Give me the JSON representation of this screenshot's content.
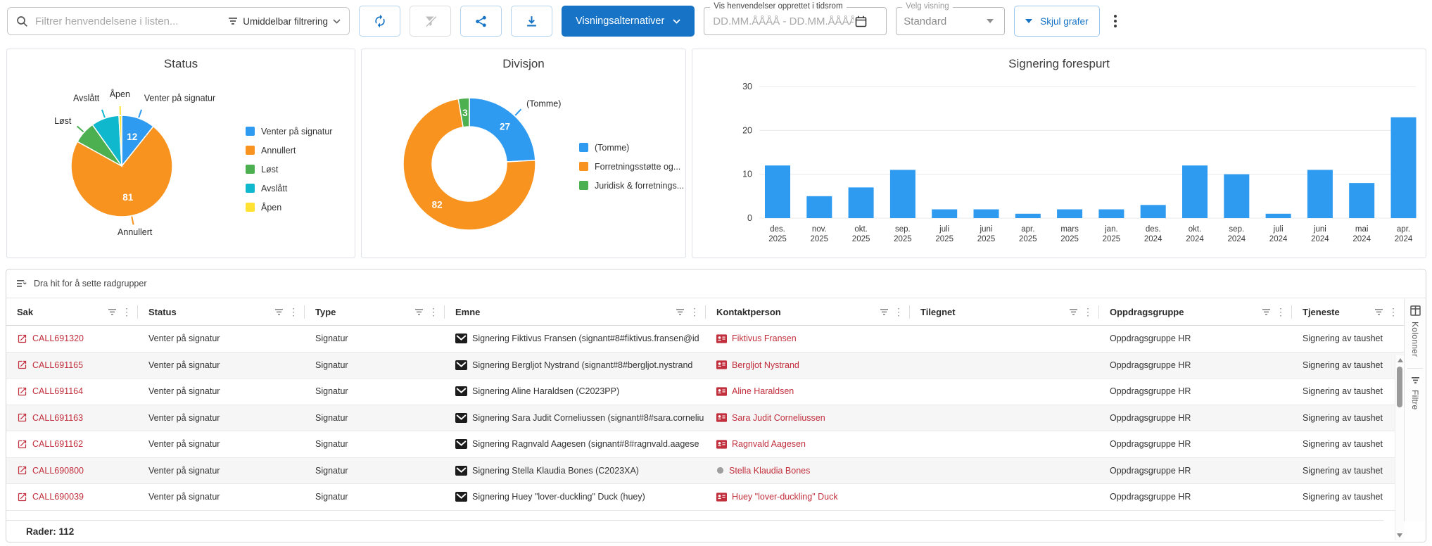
{
  "toolbar": {
    "search_placeholder": "Filtrer henvendelsene i listen...",
    "filter_mode_label": "Umiddelbar filtrering",
    "refresh_icon": "refresh-icon",
    "clear_filter_icon": "filter-off-icon",
    "share_icon": "share-icon",
    "download_icon": "download-icon",
    "view_options_label": "Visningsalternativer",
    "date_range_label": "Vis henvendelser opprettet i tidsrom",
    "date_range_placeholder": "DD.MM.ÅÅÅÅ - DD.MM.ÅÅÅÅ",
    "view_select_label": "Velg visning",
    "view_select_value": "Standard",
    "hide_charts_label": "Skjul grafer"
  },
  "colors": {
    "accent_blue": "#1673c6",
    "chart_blue": "#2e9bf0",
    "chart_orange": "#f7931e",
    "chart_green": "#4caf50",
    "chart_cyan": "#10b8ce",
    "chart_yellow": "#ffe234",
    "link_red": "#c12e3c"
  },
  "chart_data": [
    {
      "type": "pie",
      "title": "Status",
      "slices": [
        {
          "label": "Venter på signatur",
          "value": 12,
          "color": "#2e9bf0",
          "show_value": true,
          "show_label": true
        },
        {
          "label": "Annullert",
          "value": 81,
          "color": "#f7931e",
          "show_value": true,
          "show_label": true
        },
        {
          "label": "Løst",
          "value": 8,
          "color": "#4caf50",
          "show_value": false,
          "show_label": true
        },
        {
          "label": "Avslått",
          "value": 10,
          "color": "#10b8ce",
          "show_value": false,
          "show_label": true
        },
        {
          "label": "Åpen",
          "value": 1,
          "color": "#ffe234",
          "show_value": false,
          "show_label": true
        }
      ],
      "legend": [
        "Venter på signatur",
        "Annullert",
        "Løst",
        "Avslått",
        "Åpen"
      ],
      "legend_position": "right"
    },
    {
      "type": "donut",
      "title": "Divisjon",
      "slices": [
        {
          "label": "(Tomme)",
          "value": 27,
          "color": "#2e9bf0",
          "show_value": true,
          "show_label": true
        },
        {
          "label": "Forretningsstøtte og...",
          "value": 82,
          "color": "#f7931e",
          "show_value": true,
          "show_label": false
        },
        {
          "label": "Juridisk & forretnings...",
          "value": 3,
          "color": "#4caf50",
          "show_value": true,
          "show_label": false
        }
      ],
      "legend": [
        "(Tomme)",
        "Forretningsstøtte og...",
        "Juridisk & forretnings..."
      ],
      "legend_position": "right"
    },
    {
      "type": "bar",
      "title": "Signering forespurt",
      "categories": [
        "des. 2025",
        "nov. 2025",
        "okt. 2025",
        "sep. 2025",
        "juli 2025",
        "juni 2025",
        "apr. 2025",
        "mars 2025",
        "jan. 2025",
        "des. 2024",
        "okt. 2024",
        "sep. 2024",
        "juli 2024",
        "juni 2024",
        "mai 2024",
        "apr. 2024"
      ],
      "values": [
        12,
        5,
        7,
        11,
        2,
        2,
        1,
        2,
        2,
        3,
        12,
        10,
        1,
        11,
        8,
        23
      ],
      "bar_color": "#2e9bf0",
      "yticks": [
        0,
        10,
        20,
        30
      ],
      "ylim": [
        0,
        30
      ],
      "grid": true,
      "xlabel": "",
      "ylabel": ""
    }
  ],
  "table": {
    "group_hint": "Dra hit for å sette radgrupper",
    "columns": [
      "Sak",
      "Status",
      "Type",
      "Emne",
      "Kontaktperson",
      "Tilegnet",
      "Oppdragsgruppe",
      "Tjeneste"
    ],
    "rows": [
      {
        "sak": "CALL691320",
        "status": "Venter på signatur",
        "type": "Signatur",
        "emne": "Signering Fiktivus Fransen (signant#8#fiktivus.fransen@id",
        "kontaktperson": "Fiktivus Fransen",
        "kontakt_icon": "contact-card",
        "tilegnet": "",
        "oppdragsgruppe": "Oppdragsgruppe HR",
        "tjeneste": "Signering av taushet"
      },
      {
        "sak": "CALL691165",
        "status": "Venter på signatur",
        "type": "Signatur",
        "emne": "Signering Bergljot Nystrand (signant#8#bergljot.nystrand",
        "kontaktperson": "Bergljot Nystrand",
        "kontakt_icon": "contact-card",
        "tilegnet": "",
        "oppdragsgruppe": "Oppdragsgruppe HR",
        "tjeneste": "Signering av taushet"
      },
      {
        "sak": "CALL691164",
        "status": "Venter på signatur",
        "type": "Signatur",
        "emne": "Signering Aline Haraldsen (C2023PP)",
        "kontaktperson": "Aline Haraldsen",
        "kontakt_icon": "contact-card",
        "tilegnet": "",
        "oppdragsgruppe": "Oppdragsgruppe HR",
        "tjeneste": "Signering av taushet"
      },
      {
        "sak": "CALL691163",
        "status": "Venter på signatur",
        "type": "Signatur",
        "emne": "Signering Sara Judit Corneliussen (signant#8#sara.corneliu",
        "kontaktperson": "Sara Judit Corneliussen",
        "kontakt_icon": "contact-card",
        "tilegnet": "",
        "oppdragsgruppe": "Oppdragsgruppe HR",
        "tjeneste": "Signering av taushet"
      },
      {
        "sak": "CALL691162",
        "status": "Venter på signatur",
        "type": "Signatur",
        "emne": "Signering Ragnvald Aagesen (signant#8#ragnvald.aagese",
        "kontaktperson": "Ragnvald Aagesen",
        "kontakt_icon": "contact-card",
        "tilegnet": "",
        "oppdragsgruppe": "Oppdragsgruppe HR",
        "tjeneste": "Signering av taushet"
      },
      {
        "sak": "CALL690800",
        "status": "Venter på signatur",
        "type": "Signatur",
        "emne": "Signering Stella Klaudia Bones (C2023XA)",
        "kontaktperson": "Stella Klaudia Bones",
        "kontakt_icon": "gray-circle",
        "tilegnet": "",
        "oppdragsgruppe": "Oppdragsgruppe HR",
        "tjeneste": "Signering av taushet"
      },
      {
        "sak": "CALL690039",
        "status": "Venter på signatur",
        "type": "Signatur",
        "emne": "Signering Huey \"lover-duckling\" Duck (huey)",
        "kontaktperson": "Huey \"lover-duckling\" Duck",
        "kontakt_icon": "contact-card",
        "tilegnet": "",
        "oppdragsgruppe": "Oppdragsgruppe HR",
        "tjeneste": "Signering av taushet"
      }
    ],
    "footer": "Rader: 112",
    "side_tabs": [
      "Kolonner",
      "Filtre"
    ]
  }
}
